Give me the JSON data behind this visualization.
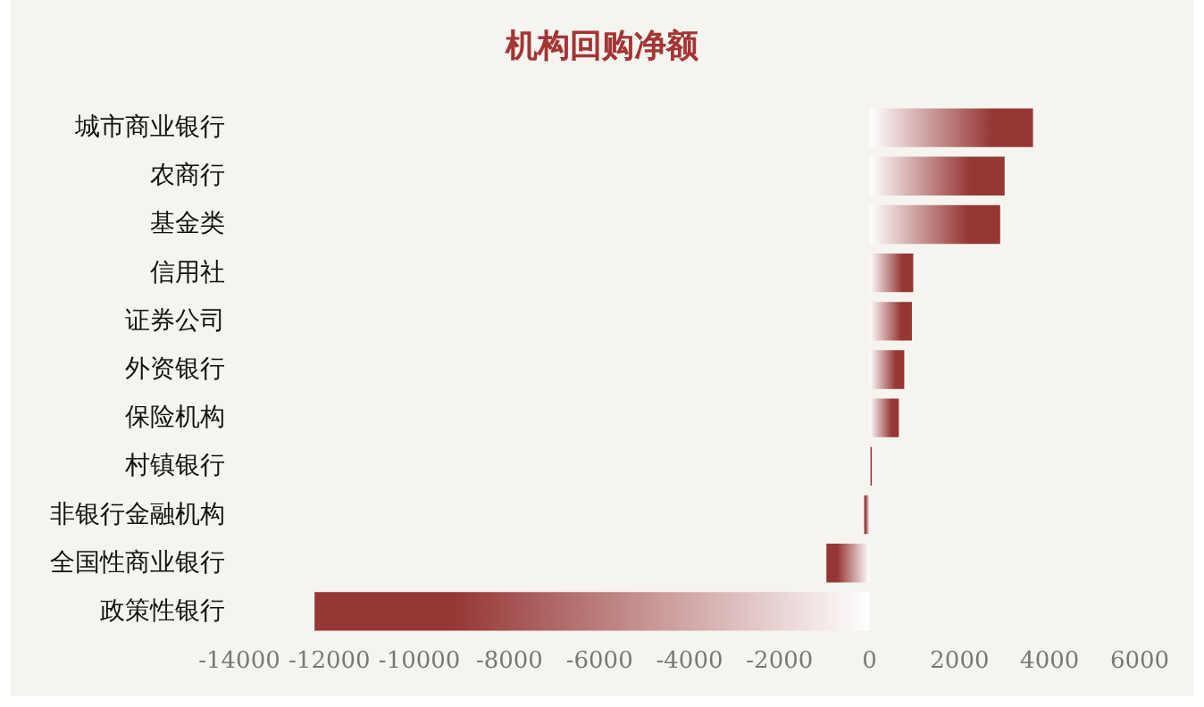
{
  "chart_data": {
    "type": "bar",
    "orientation": "horizontal",
    "title": "机构回购净额",
    "categories": [
      "城市商业银行",
      "农商行",
      "基金类",
      "信用社",
      "证券公司",
      "外资银行",
      "保险机构",
      "村镇银行",
      "非银行金融机构",
      "全国性商业银行",
      "政策性银行"
    ],
    "values": [
      3630,
      3000,
      2900,
      970,
      940,
      770,
      650,
      50,
      -120,
      -960,
      -12330
    ],
    "color": "#953735",
    "xlim": [
      -14000,
      6000
    ],
    "xticks": [
      -14000,
      -12000,
      -10000,
      -8000,
      -6000,
      -4000,
      -2000,
      0,
      2000,
      4000,
      6000
    ],
    "grid": false
  }
}
